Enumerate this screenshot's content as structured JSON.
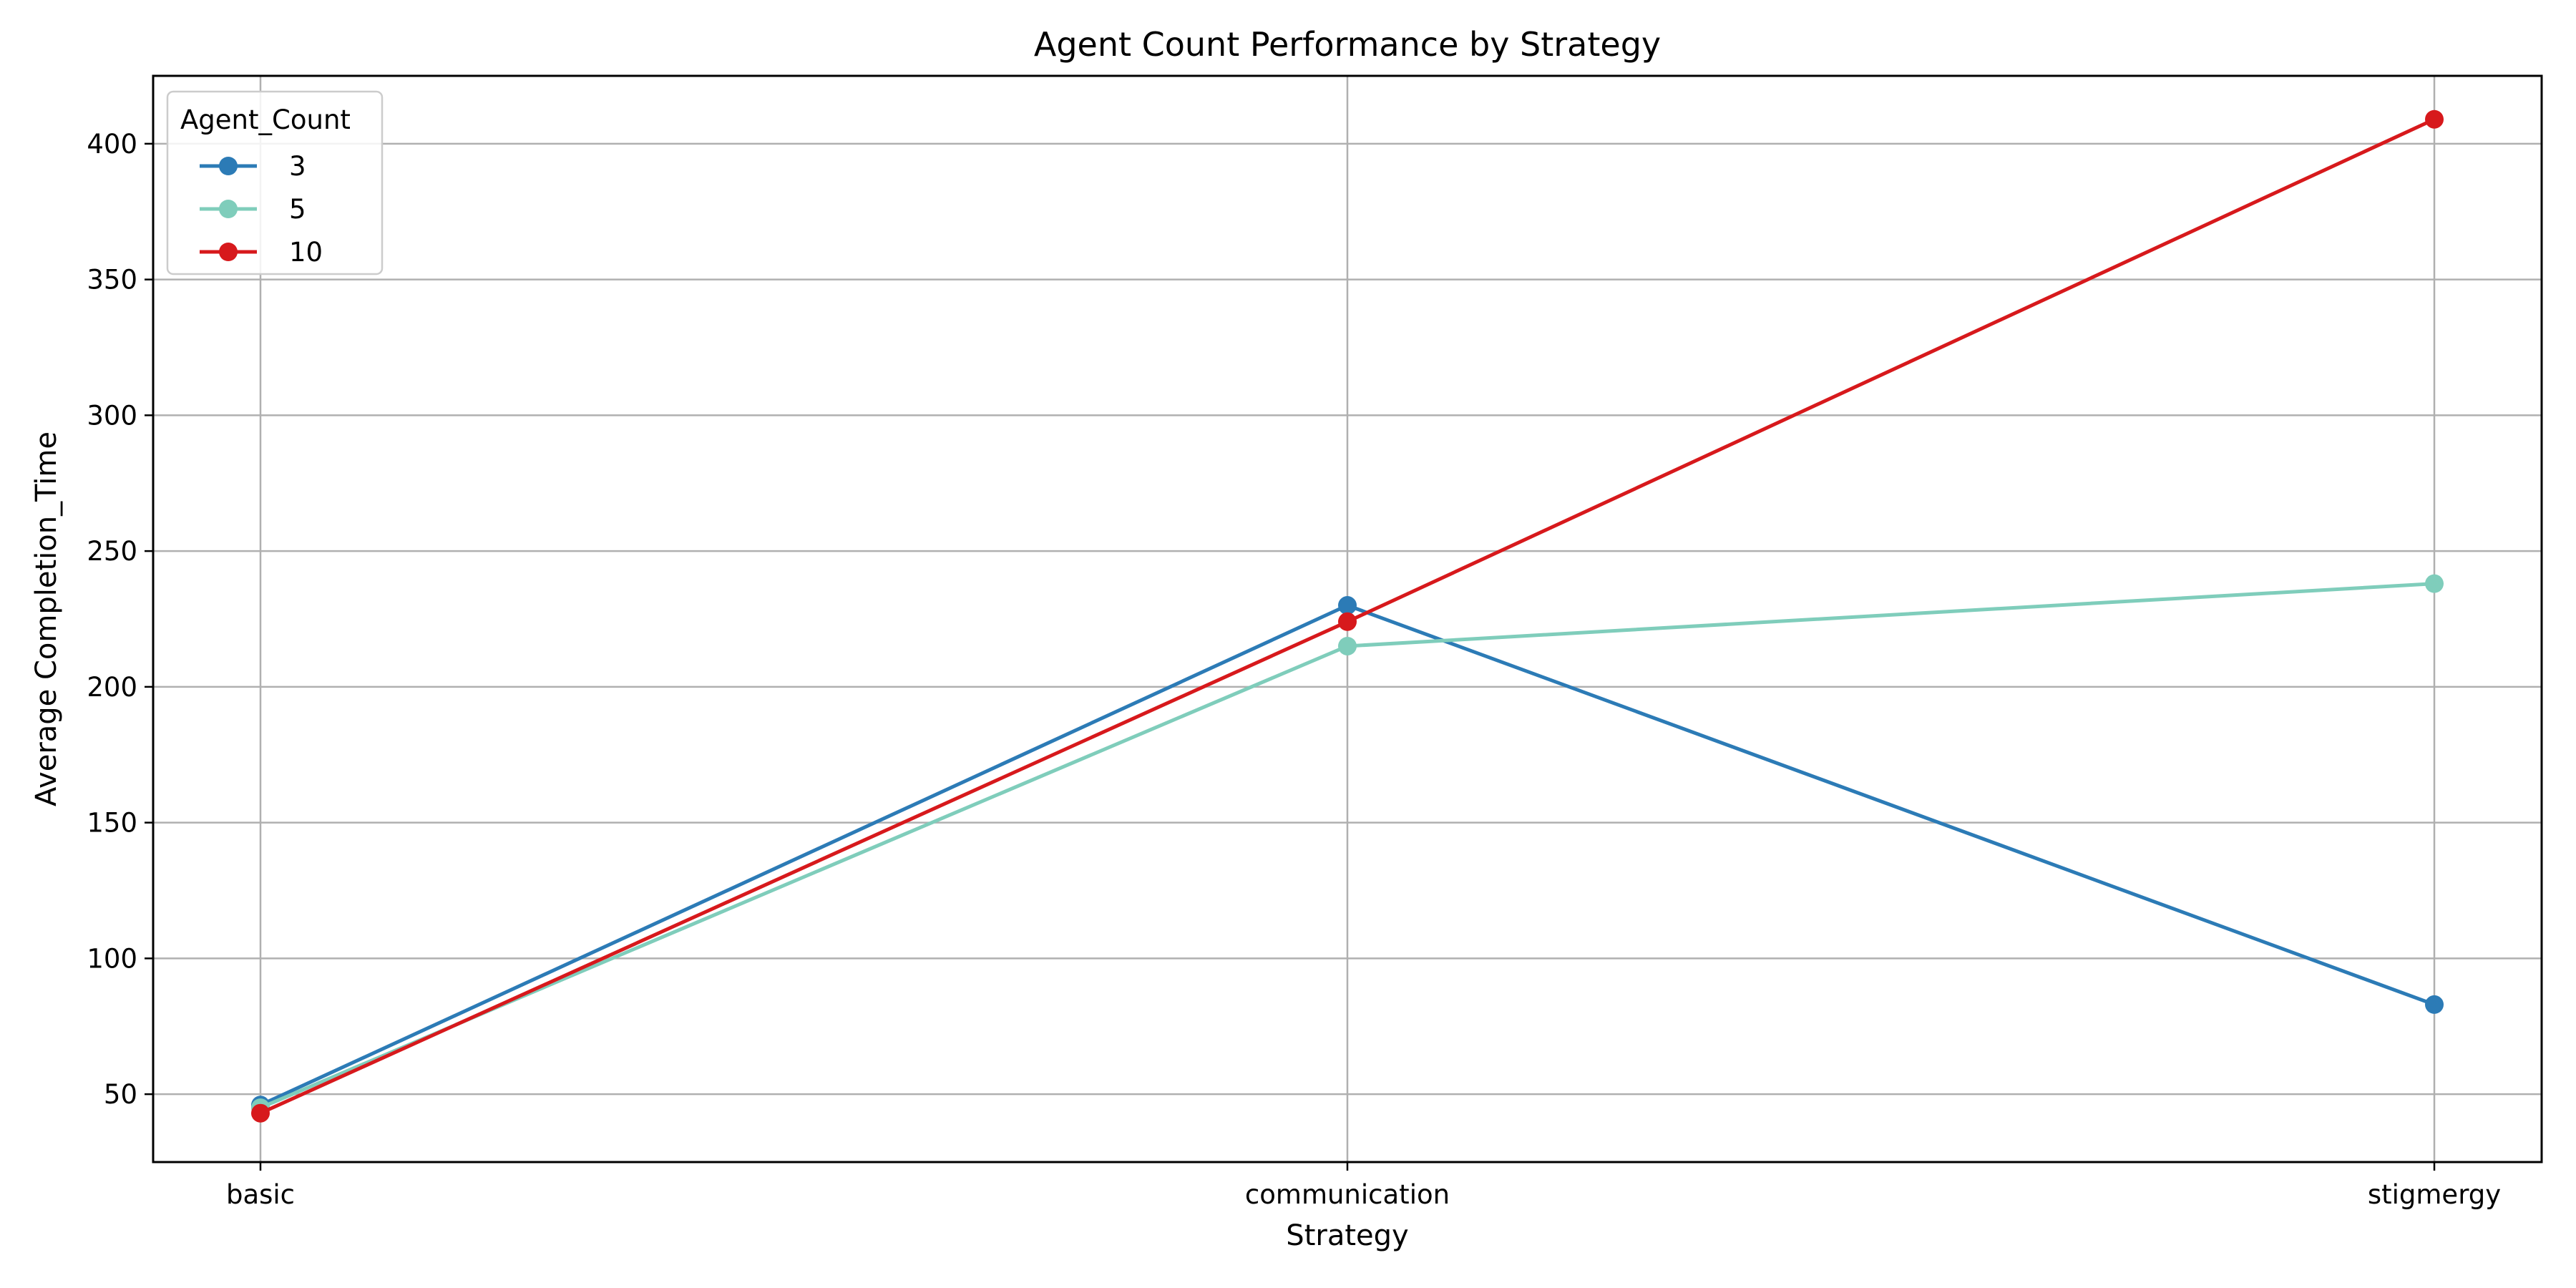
{
  "chart_data": {
    "type": "line",
    "title": "Agent Count Performance by Strategy",
    "xlabel": "Strategy",
    "ylabel": "Average Completion_Time",
    "categories": [
      "basic",
      "communication",
      "stigmergy"
    ],
    "ylim": [
      25,
      425
    ],
    "yticks": [
      50,
      100,
      150,
      200,
      250,
      300,
      350,
      400
    ],
    "grid": true,
    "legend": {
      "title": "Agent_Count",
      "placement": "top-left"
    },
    "series": [
      {
        "name": "3",
        "color": "#2c7bb6",
        "values": [
          46,
          230,
          83
        ]
      },
      {
        "name": "5",
        "color": "#7fcdbb",
        "values": [
          45,
          215,
          238
        ]
      },
      {
        "name": "10",
        "color": "#d7191c",
        "values": [
          43,
          224,
          409
        ]
      }
    ]
  }
}
